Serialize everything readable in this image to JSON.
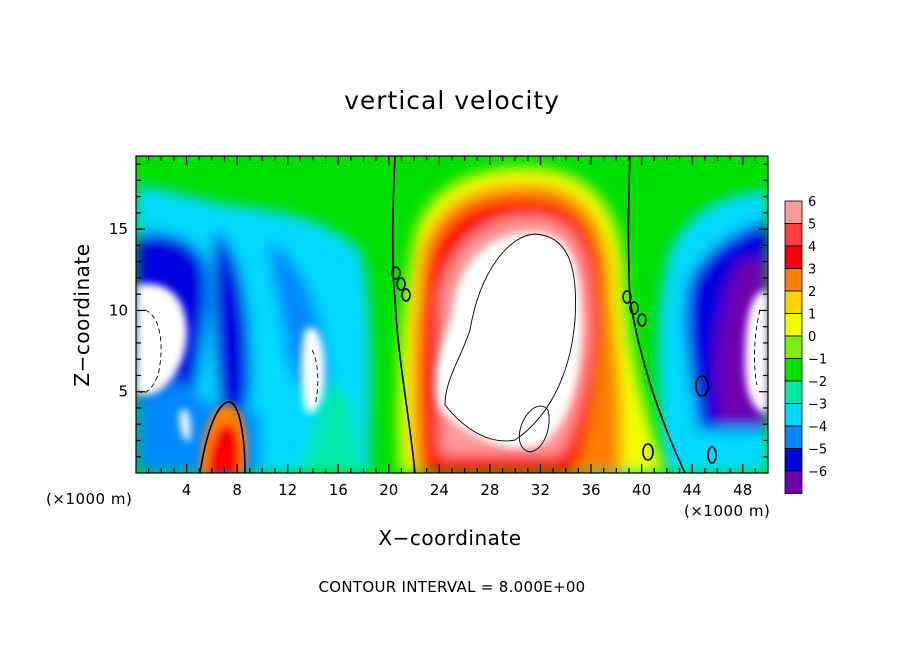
{
  "chart_data": {
    "type": "heatmap",
    "title": "vertical velocity",
    "xlabel": "X−coordinate",
    "ylabel": "Z−coordinate",
    "x_unit_left": "(×1000 m)",
    "x_unit_right": "(×1000 m)",
    "xlim": [
      0,
      50
    ],
    "ylim": [
      0,
      19.5
    ],
    "x_ticks": [
      4,
      8,
      12,
      16,
      20,
      24,
      28,
      32,
      36,
      40,
      44,
      48
    ],
    "y_ticks": [
      5,
      10,
      15
    ],
    "contour_note": "CONTOUR INTERVAL = 8.000E+00",
    "colorbar": {
      "levels": [
        "6",
        "5",
        "4",
        "3",
        "2",
        "1",
        "0",
        "−1",
        "−2",
        "−3",
        "−4",
        "−5",
        "−6"
      ],
      "colors": [
        "#ff9a9a",
        "#ff4040",
        "#ff0000",
        "#ff8000",
        "#ffd200",
        "#f0ff00",
        "#7cf000",
        "#00e000",
        "#00e8a8",
        "#00d8ff",
        "#0088ff",
        "#0000e0",
        "#7000b0"
      ]
    },
    "features": [
      {
        "kind": "updraft-core",
        "x_range": [
          23,
          37
        ],
        "z_range": [
          0.5,
          17
        ],
        "level": "> 6"
      },
      {
        "kind": "downdraft",
        "x_range": [
          0,
          7
        ],
        "z_range": [
          2,
          15
        ],
        "level": "< -6"
      },
      {
        "kind": "downdraft",
        "x_range": [
          42,
          50
        ],
        "z_range": [
          2,
          14
        ],
        "level": "< -6"
      },
      {
        "kind": "downdraft",
        "x_range": [
          8,
          14
        ],
        "z_range": [
          4,
          15
        ],
        "level": "-4"
      },
      {
        "kind": "updraft",
        "x_range": [
          4.5,
          9
        ],
        "z_range": [
          0,
          4.5
        ],
        "level": "4"
      }
    ]
  }
}
